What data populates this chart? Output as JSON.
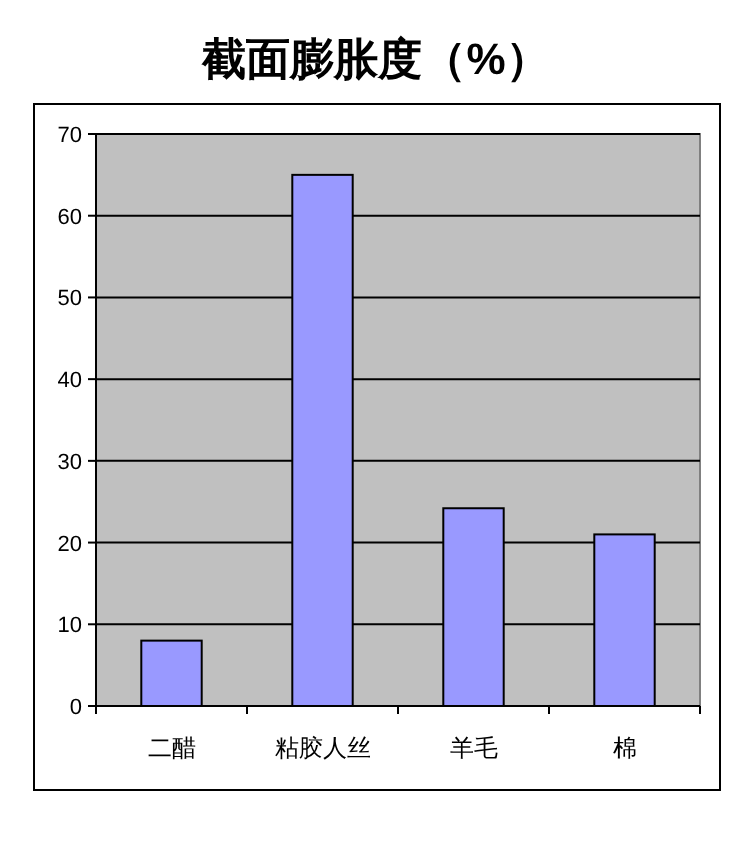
{
  "chart_data": {
    "type": "bar",
    "title": "截面膨胀度（%）",
    "categories": [
      "二醋",
      "粘胶人丝",
      "羊毛",
      "棉"
    ],
    "values": [
      8,
      65,
      24.2,
      21
    ],
    "color": "#9999ff",
    "ylim": [
      0,
      70
    ],
    "yticks": [
      0,
      10,
      20,
      30,
      40,
      50,
      60,
      70
    ],
    "grid": "y"
  }
}
